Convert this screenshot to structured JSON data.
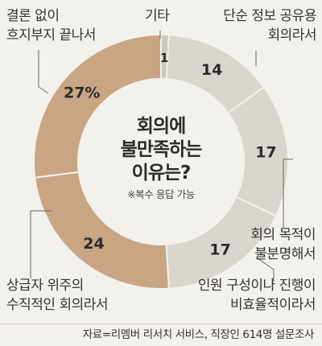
{
  "chart_data": {
    "type": "pie",
    "style": "donut",
    "center_title": [
      "회의에",
      "불만족하는",
      "이유는?"
    ],
    "center_note": "※복수 응답 가능",
    "slices": [
      {
        "label": [
          "기타"
        ],
        "value": 1,
        "value_text": "1",
        "color": "#c9c6bd"
      },
      {
        "label": [
          "단순 정보 공유용",
          "회의라서"
        ],
        "value": 14,
        "value_text": "14",
        "color": "#d9d6cf"
      },
      {
        "label": [
          "회의 목적이",
          "불분명해서"
        ],
        "value": 17,
        "value_text": "17",
        "color": "#d9d6cf"
      },
      {
        "label": [
          "인원 구성이나 진행이",
          "비효율적이라서"
        ],
        "value": 17,
        "value_text": "17",
        "color": "#d9d6cf"
      },
      {
        "label": [
          "상급자 위주의",
          "수직적인 회의라서"
        ],
        "value": 24,
        "value_text": "24",
        "color": "#c9a584"
      },
      {
        "label": [
          "결론 없이",
          "흐지부지 끝나서"
        ],
        "value": 27,
        "value_text": "27%",
        "color": "#c9a584"
      }
    ],
    "leader_color": "#666666",
    "value_text_color": "#2b2b2b"
  },
  "source": "자료=리멤버 리서치 서비스, 직장인 614명 설문조사"
}
